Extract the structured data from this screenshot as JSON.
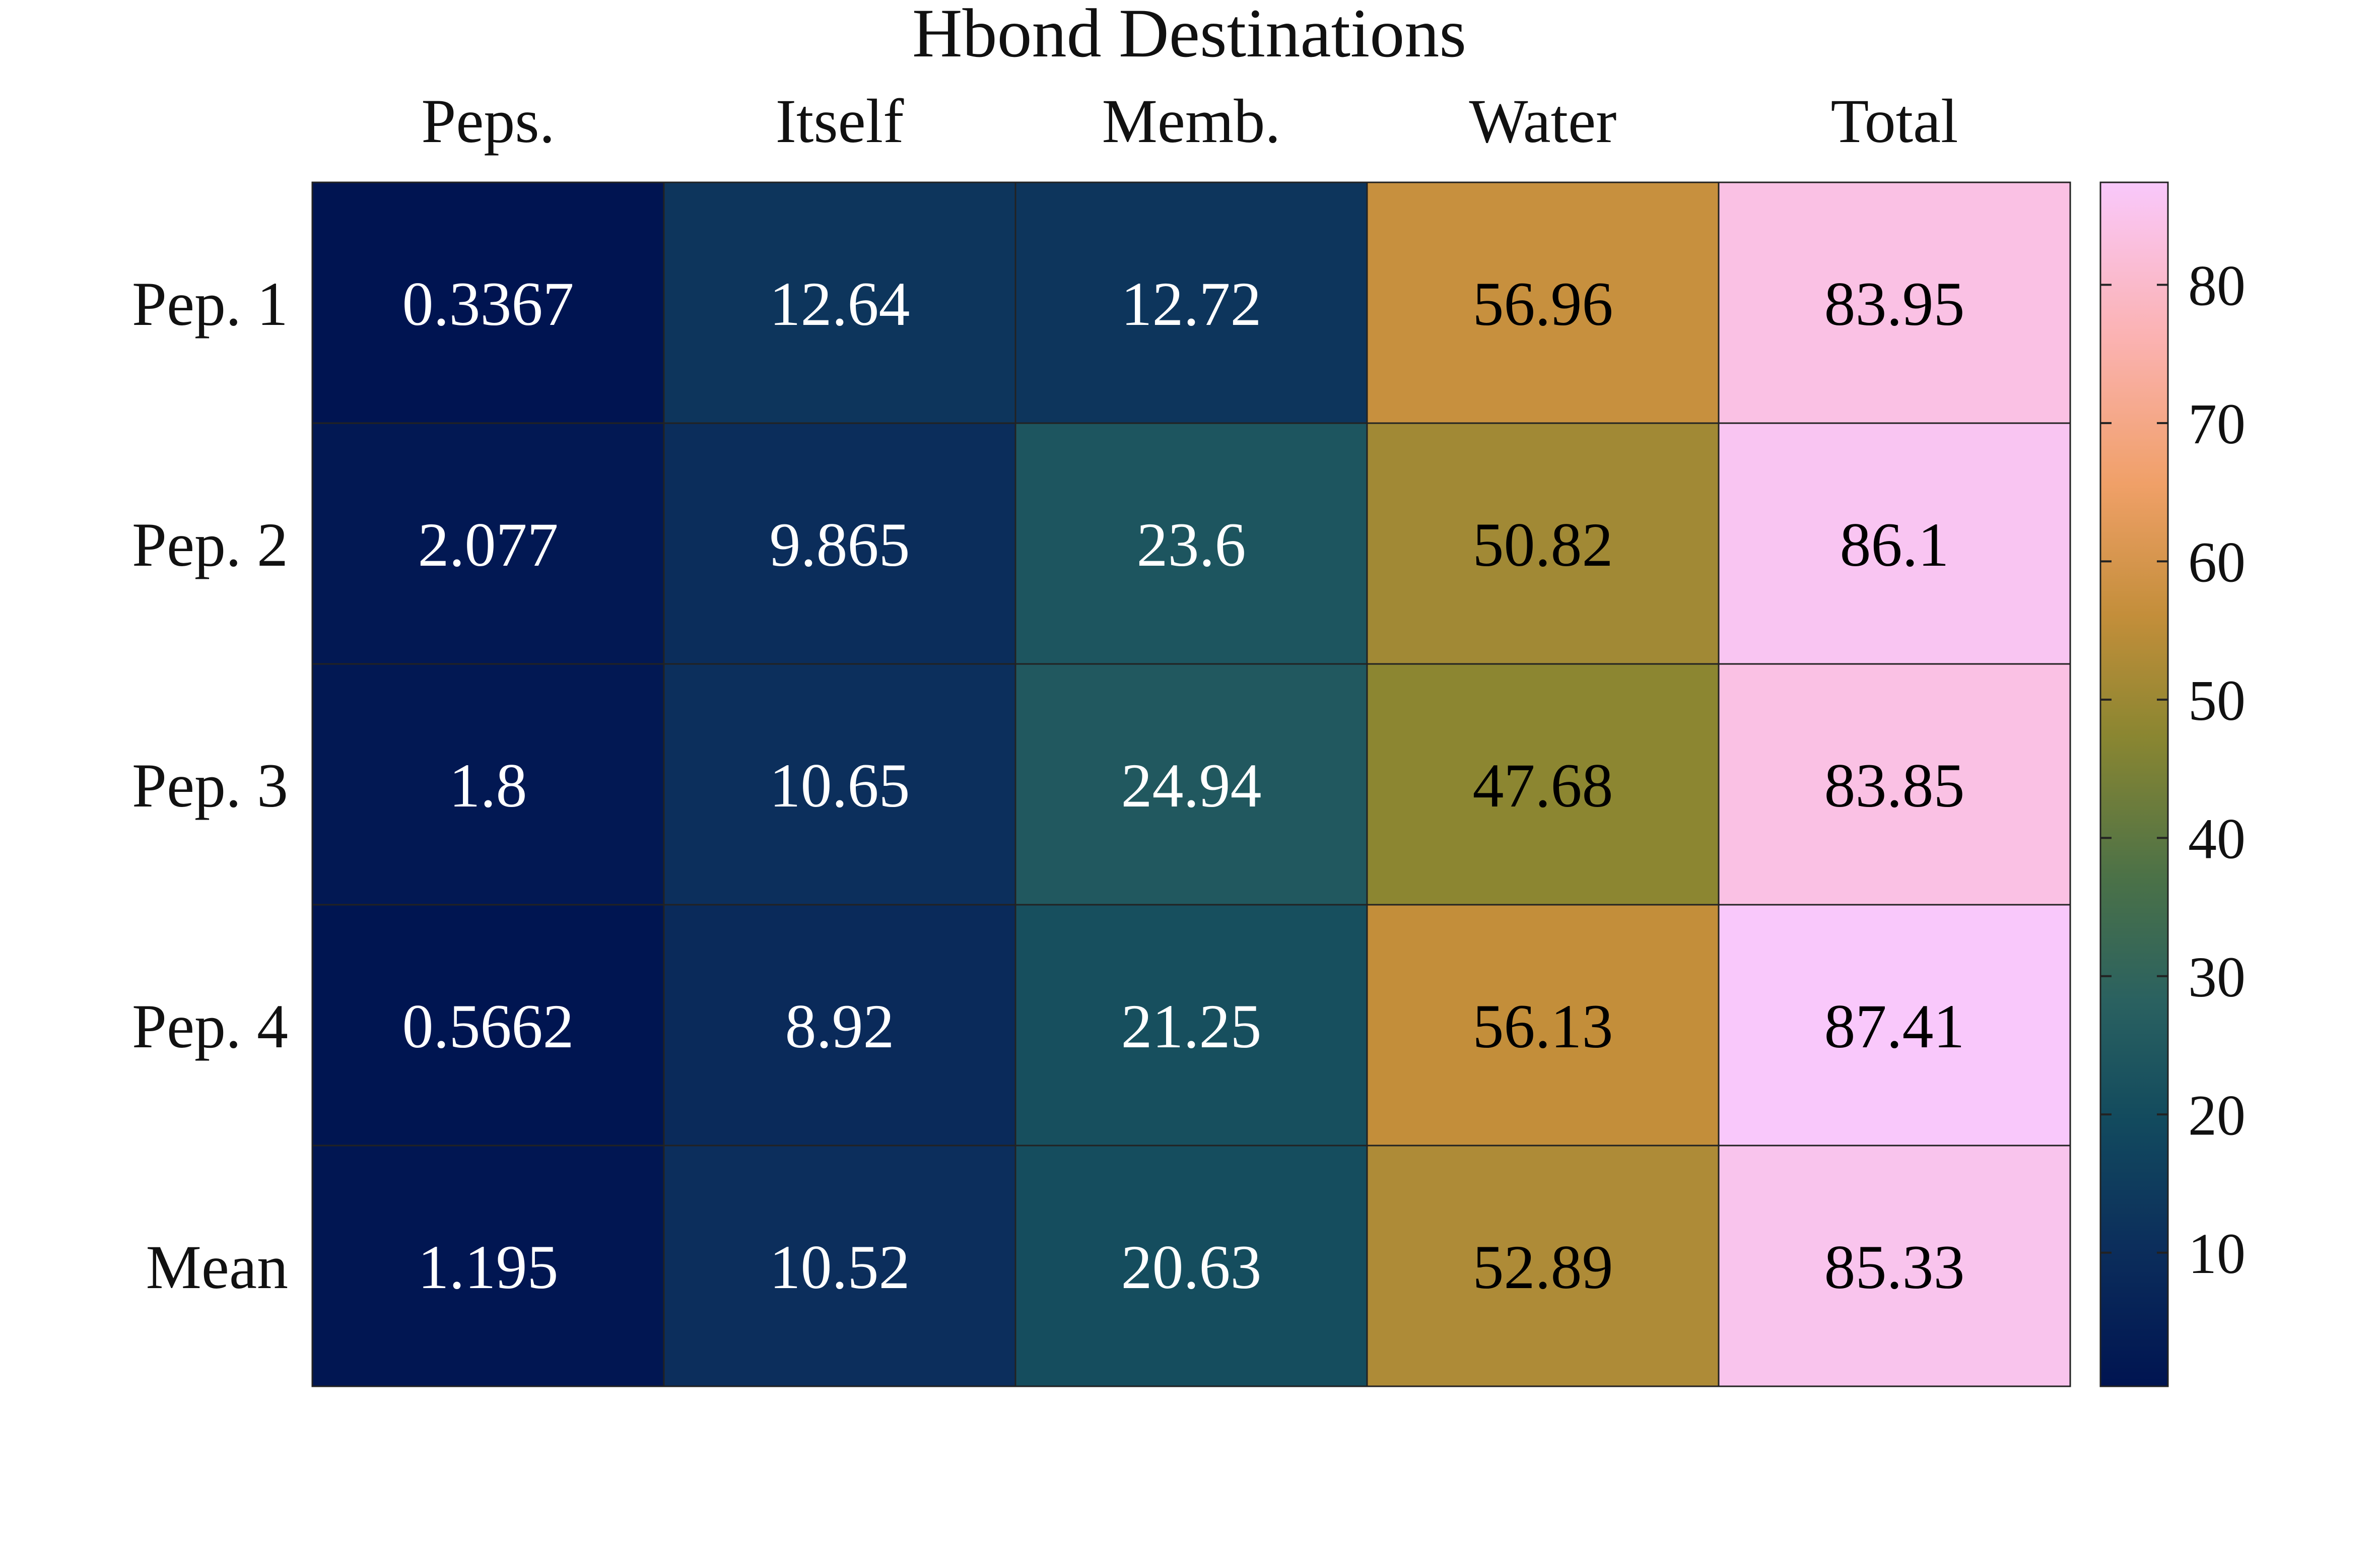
{
  "chart_data": {
    "type": "heatmap",
    "title": "Hbond Destinations",
    "columns": [
      "Peps.",
      "Itself",
      "Memb.",
      "Water",
      "Total"
    ],
    "rows": [
      "Pep. 1",
      "Pep. 2",
      "Pep. 3",
      "Pep. 4",
      "Mean"
    ],
    "values": [
      [
        0.3367,
        12.64,
        12.72,
        56.96,
        83.95
      ],
      [
        2.077,
        9.865,
        23.6,
        50.82,
        86.1
      ],
      [
        1.8,
        10.65,
        24.94,
        47.68,
        83.85
      ],
      [
        0.5662,
        8.92,
        21.25,
        56.13,
        87.41
      ],
      [
        1.195,
        10.52,
        20.63,
        52.89,
        85.33
      ]
    ],
    "value_labels": [
      [
        "0.3367",
        "12.64",
        "12.72",
        "56.96",
        "83.95"
      ],
      [
        "2.077",
        "9.865",
        "23.6",
        "50.82",
        "86.1"
      ],
      [
        "1.8",
        "10.65",
        "24.94",
        "47.68",
        "83.85"
      ],
      [
        "0.5662",
        "8.92",
        "21.25",
        "56.13",
        "87.41"
      ],
      [
        "1.195",
        "10.52",
        "20.63",
        "52.89",
        "85.33"
      ]
    ],
    "colorbar": {
      "range": [
        0.3367,
        87.41
      ],
      "ticks": [
        10,
        20,
        30,
        40,
        50,
        60,
        70,
        80
      ],
      "placement": "right"
    },
    "colormap_stops": [
      [
        0.0,
        "#001451"
      ],
      [
        0.12,
        "#0c2f5c"
      ],
      [
        0.22,
        "#124a5e"
      ],
      [
        0.32,
        "#2a6160"
      ],
      [
        0.42,
        "#4a7148"
      ],
      [
        0.54,
        "#8a8631"
      ],
      [
        0.64,
        "#c38e3a"
      ],
      [
        0.75,
        "#f0a068"
      ],
      [
        0.87,
        "#fbb2b1"
      ],
      [
        1.0,
        "#f9c8fb"
      ]
    ],
    "text_colors": {
      "dark_cell": "#ffffff",
      "light_cell": "#000000"
    }
  }
}
